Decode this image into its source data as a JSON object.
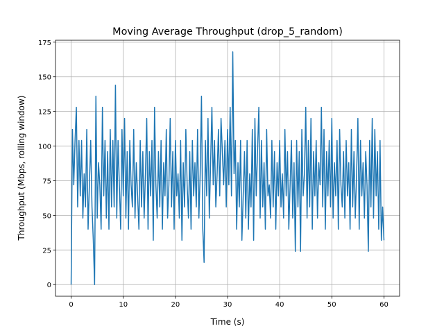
{
  "chart_data": {
    "type": "line",
    "title": "Moving Average Throughput (drop_5_random)",
    "x_label": "Time (s)",
    "y_label": "Throughput (Mbps, rolling window)",
    "color": "#1f77b4",
    "grid": true,
    "xlim": [
      -3,
      63
    ],
    "ylim": [
      -8.4,
      176.4
    ],
    "xticks": [
      0,
      10,
      20,
      30,
      40,
      50,
      60
    ],
    "yticks": [
      0,
      25,
      50,
      75,
      100,
      125,
      150,
      175
    ],
    "x": [
      0,
      0.25,
      0.5,
      0.75,
      1,
      1.25,
      1.5,
      1.75,
      2,
      2.25,
      2.5,
      2.75,
      3,
      3.25,
      3.5,
      3.75,
      4,
      4.25,
      4.5,
      4.75,
      5,
      5.25,
      5.5,
      5.75,
      6,
      6.25,
      6.5,
      6.75,
      7,
      7.25,
      7.5,
      7.75,
      8,
      8.25,
      8.5,
      8.75,
      9,
      9.25,
      9.5,
      9.75,
      10,
      10.25,
      10.5,
      10.75,
      11,
      11.25,
      11.5,
      11.75,
      12,
      12.25,
      12.5,
      12.75,
      13,
      13.25,
      13.5,
      13.75,
      14,
      14.25,
      14.5,
      14.75,
      15,
      15.25,
      15.5,
      15.75,
      16,
      16.25,
      16.5,
      16.75,
      17,
      17.25,
      17.5,
      17.75,
      18,
      18.25,
      18.5,
      18.75,
      19,
      19.25,
      19.5,
      19.75,
      20,
      20.25,
      20.5,
      20.75,
      21,
      21.25,
      21.5,
      21.75,
      22,
      22.25,
      22.5,
      22.75,
      23,
      23.25,
      23.5,
      23.75,
      24,
      24.25,
      24.5,
      24.75,
      25,
      25.25,
      25.5,
      25.75,
      26,
      26.25,
      26.5,
      26.75,
      27,
      27.25,
      27.5,
      27.75,
      28,
      28.25,
      28.5,
      28.75,
      29,
      29.25,
      29.5,
      29.75,
      30,
      30.25,
      30.5,
      30.75,
      31,
      31.25,
      31.5,
      31.75,
      32,
      32.25,
      32.5,
      32.75,
      33,
      33.25,
      33.5,
      33.75,
      34,
      34.25,
      34.5,
      34.75,
      35,
      35.25,
      35.5,
      35.75,
      36,
      36.25,
      36.5,
      36.75,
      37,
      37.25,
      37.5,
      37.75,
      38,
      38.25,
      38.5,
      38.75,
      39,
      39.25,
      39.5,
      39.75,
      40,
      40.25,
      40.5,
      40.75,
      41,
      41.25,
      41.5,
      41.75,
      42,
      42.25,
      42.5,
      42.75,
      43,
      43.25,
      43.5,
      43.75,
      44,
      44.25,
      44.5,
      44.75,
      45,
      45.25,
      45.5,
      45.75,
      46,
      46.25,
      46.5,
      46.75,
      47,
      47.25,
      47.5,
      47.75,
      48,
      48.25,
      48.5,
      48.75,
      49,
      49.25,
      49.5,
      49.75,
      50,
      50.25,
      50.5,
      50.75,
      51,
      51.25,
      51.5,
      51.75,
      52,
      52.25,
      52.5,
      52.75,
      53,
      53.25,
      53.5,
      53.75,
      54,
      54.25,
      54.5,
      54.75,
      55,
      55.25,
      55.5,
      55.75,
      56,
      56.25,
      56.5,
      56.75,
      57,
      57.25,
      57.5,
      57.75,
      58,
      58.25,
      58.5,
      58.75,
      59,
      59.25,
      59.5,
      59.75,
      60
    ],
    "values": [
      0,
      112,
      72,
      104,
      128,
      56,
      104,
      64,
      104,
      48,
      80,
      56,
      112,
      40,
      72,
      104,
      56,
      32,
      0,
      136,
      48,
      88,
      72,
      40,
      128,
      64,
      104,
      48,
      96,
      40,
      112,
      56,
      104,
      56,
      144,
      48,
      104,
      72,
      40,
      112,
      64,
      120,
      48,
      96,
      40,
      104,
      72,
      56,
      112,
      48,
      88,
      64,
      40,
      104,
      56,
      96,
      48,
      80,
      120,
      40,
      96,
      64,
      104,
      32,
      128,
      72,
      48,
      96,
      56,
      104,
      40,
      88,
      64,
      112,
      48,
      72,
      120,
      56,
      96,
      40,
      104,
      64,
      80,
      48,
      104,
      32,
      88,
      56,
      112,
      72,
      48,
      96,
      40,
      104,
      64,
      88,
      56,
      112,
      48,
      80,
      136,
      40,
      16,
      104,
      64,
      120,
      48,
      88,
      128,
      72,
      104,
      56,
      80,
      112,
      64,
      120,
      96,
      72,
      104,
      56,
      112,
      72,
      128,
      64,
      168,
      80,
      104,
      40,
      88,
      56,
      104,
      32,
      64,
      96,
      48,
      104,
      40,
      80,
      56,
      112,
      32,
      120,
      64,
      96,
      128,
      48,
      104,
      56,
      88,
      40,
      112,
      64,
      72,
      48,
      104,
      56,
      96,
      40,
      88,
      64,
      104,
      56,
      80,
      48,
      112,
      64,
      96,
      40,
      72,
      104,
      48,
      88,
      24,
      104,
      56,
      96,
      24,
      112,
      64,
      80,
      128,
      48,
      104,
      56,
      120,
      40,
      96,
      64,
      104,
      48,
      88,
      72,
      128,
      56,
      112,
      40,
      96,
      64,
      104,
      56,
      120,
      48,
      88,
      64,
      104,
      40,
      112,
      72,
      56,
      96,
      48,
      104,
      64,
      88,
      40,
      112,
      56,
      96,
      48,
      80,
      120,
      40,
      104,
      64,
      88,
      48,
      96,
      72,
      24,
      104,
      56,
      120,
      48,
      112,
      64,
      96,
      40,
      104,
      32,
      56,
      32
    ]
  }
}
